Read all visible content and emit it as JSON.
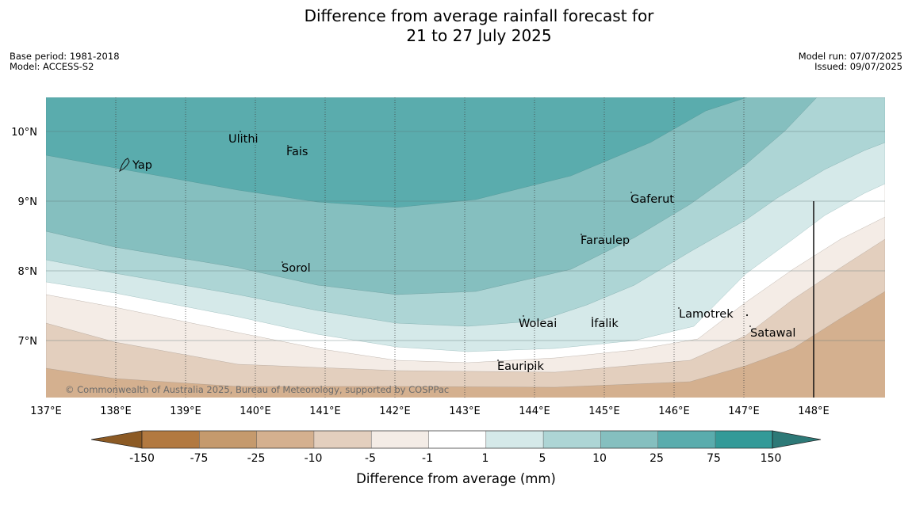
{
  "title": {
    "line1": "Difference from average rainfall forecast for",
    "line2": "21 to 27 July 2025"
  },
  "meta": {
    "base_period": "Base period: 1981-2018",
    "model": "Model: ACCESS-S2",
    "model_run": "Model run: 07/07/2025",
    "issued": "Issued: 09/07/2025"
  },
  "map": {
    "lon_range": [
      137,
      149
    ],
    "lat_range": [
      6.2,
      10.5
    ],
    "lon_ticks": [
      "137°E",
      "138°E",
      "139°E",
      "140°E",
      "141°E",
      "142°E",
      "143°E",
      "144°E",
      "145°E",
      "146°E",
      "147°E",
      "148°E"
    ],
    "lat_ticks": [
      {
        "lat": 10,
        "label": "10°N"
      },
      {
        "lat": 9,
        "label": "9°N"
      },
      {
        "lat": 8,
        "label": "8°N"
      },
      {
        "lat": 7,
        "label": "7°N"
      }
    ],
    "copyright": "© Commonwealth of Australia 2025, Bureau of Meteorology, supported by COSPPac",
    "places": [
      {
        "name": "Yap",
        "lon": 138.2,
        "lat": 9.5
      },
      {
        "name": "Ulithi",
        "lon": 139.6,
        "lat": 9.9
      },
      {
        "name": "Fais",
        "lon": 140.4,
        "lat": 9.75
      },
      {
        "name": "Gaferut",
        "lon": 145.3,
        "lat": 9.05
      },
      {
        "name": "Faraulep",
        "lon": 144.6,
        "lat": 8.45
      },
      {
        "name": "Sorol",
        "lon": 140.3,
        "lat": 8.05
      },
      {
        "name": "Woleai",
        "lon": 143.8,
        "lat": 7.3
      },
      {
        "name": "Ifalik",
        "lon": 144.8,
        "lat": 7.3
      },
      {
        "name": "Lamotrek",
        "lon": 146.1,
        "lat": 7.4
      },
      {
        "name": "Satawal",
        "lon": 147.0,
        "lat": 7.15
      },
      {
        "name": "Eauripik",
        "lon": 143.4,
        "lat": 6.7
      }
    ],
    "bands_color_order": [
      "#5aacad",
      "#85bfbf",
      "#add5d5",
      "#d5e9e9",
      "#ffffff",
      "#f4ece6",
      "#e3cfbe",
      "#d4b08f"
    ]
  },
  "colorbar": {
    "title": "Difference from average (mm)",
    "ticks": [
      "-150",
      "-75",
      "-25",
      "-10",
      "-5",
      "-1",
      "1",
      "5",
      "10",
      "25",
      "75",
      "150"
    ],
    "colors": [
      "#8c5a24",
      "#b27940",
      "#c59a6d",
      "#d4b08f",
      "#e3cfbe",
      "#f4ece6",
      "#ffffff",
      "#d5e9e9",
      "#add5d5",
      "#85bfbf",
      "#5aacad",
      "#339a98",
      "#2d7977"
    ]
  }
}
